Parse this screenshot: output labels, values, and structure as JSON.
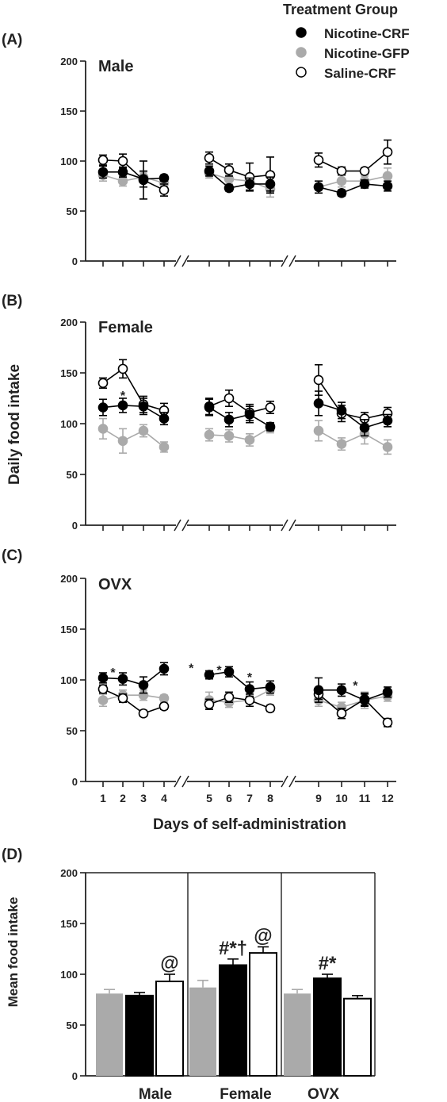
{
  "legend": {
    "title": "Treatment Group",
    "entries": [
      {
        "label": "Nicotine-CRF",
        "marker": "filled-black"
      },
      {
        "label": "Nicotine-GFP",
        "marker": "filled-gray"
      },
      {
        "label": "Saline-CRF",
        "marker": "open"
      }
    ]
  },
  "colors": {
    "nicotine_crf": "#000000",
    "nicotine_gfp": "#aaaaaa",
    "saline_crf": "#ffffff",
    "axis": "#222222"
  },
  "chart_data": [
    {
      "panel": "(A)",
      "type": "line",
      "title": "Male",
      "ylabel": "",
      "xlabel": "",
      "ylim": [
        0,
        200
      ],
      "yticks": [
        0,
        50,
        100,
        150,
        200
      ],
      "x": [
        1,
        2,
        3,
        4,
        5,
        6,
        7,
        8,
        9,
        10,
        11,
        12
      ],
      "show_xtick_labels": false,
      "series": [
        {
          "name": "Nicotine-CRF",
          "values": [
            89,
            89,
            82,
            83,
            90,
            73,
            77,
            77,
            74,
            68,
            77,
            75
          ],
          "errors": [
            6,
            5,
            8,
            3,
            5,
            3,
            6,
            7,
            6,
            3,
            4,
            5
          ]
        },
        {
          "name": "Nicotine-GFP",
          "values": [
            86,
            80,
            84,
            78,
            88,
            82,
            80,
            72,
            74,
            80,
            80,
            85
          ],
          "errors": [
            6,
            5,
            5,
            4,
            5,
            5,
            6,
            8,
            6,
            6,
            5,
            8
          ]
        },
        {
          "name": "Saline-CRF",
          "values": [
            101,
            100,
            81,
            71,
            103,
            91,
            84,
            86,
            101,
            90,
            90,
            109
          ],
          "errors": [
            5,
            7,
            19,
            6,
            6,
            6,
            14,
            18,
            7,
            4,
            3,
            12
          ]
        }
      ],
      "annotations": []
    },
    {
      "panel": "(B)",
      "type": "line",
      "title": "Female",
      "ylabel": "Daily food intake",
      "xlabel": "",
      "ylim": [
        0,
        200
      ],
      "yticks": [
        0,
        50,
        100,
        150,
        200
      ],
      "x": [
        1,
        2,
        3,
        4,
        5,
        6,
        7,
        8,
        9,
        10,
        11,
        12
      ],
      "show_xtick_labels": false,
      "series": [
        {
          "name": "Nicotine-CRF",
          "values": [
            116,
            118,
            117,
            105,
            116,
            104,
            109,
            97,
            120,
            113,
            96,
            103
          ],
          "errors": [
            8,
            7,
            8,
            6,
            8,
            7,
            8,
            4,
            12,
            8,
            8,
            6
          ]
        },
        {
          "name": "Nicotine-GFP",
          "values": [
            95,
            83,
            93,
            77,
            89,
            88,
            84,
            96,
            93,
            80,
            90,
            77
          ],
          "errors": [
            10,
            12,
            6,
            5,
            6,
            6,
            6,
            5,
            10,
            6,
            10,
            7
          ]
        },
        {
          "name": "Saline-CRF",
          "values": [
            140,
            154,
            119,
            113,
            117,
            125,
            111,
            116,
            143,
            110,
            105,
            110
          ],
          "errors": [
            5,
            9,
            8,
            7,
            8,
            8,
            8,
            6,
            15,
            8,
            6,
            6
          ]
        }
      ],
      "annotations": [
        {
          "text": "*",
          "x": 2,
          "y": 128
        }
      ]
    },
    {
      "panel": "(C)",
      "type": "line",
      "title": "OVX",
      "ylabel": "",
      "xlabel": "Days of self-administration",
      "ylim": [
        0,
        200
      ],
      "yticks": [
        0,
        50,
        100,
        150,
        200
      ],
      "x": [
        1,
        2,
        3,
        4,
        5,
        6,
        7,
        8,
        9,
        10,
        11,
        12
      ],
      "show_xtick_labels": true,
      "series": [
        {
          "name": "Nicotine-CRF",
          "values": [
            102,
            101,
            95,
            111,
            105,
            108,
            91,
            93,
            90,
            90,
            80,
            88
          ],
          "errors": [
            5,
            6,
            8,
            6,
            4,
            5,
            7,
            6,
            12,
            6,
            6,
            5
          ]
        },
        {
          "name": "Nicotine-GFP",
          "values": [
            80,
            85,
            85,
            82,
            80,
            78,
            80,
            90,
            80,
            73,
            80,
            84
          ],
          "errors": [
            6,
            5,
            5,
            3,
            8,
            5,
            6,
            5,
            6,
            5,
            8,
            5
          ]
        },
        {
          "name": "Saline-CRF",
          "values": [
            91,
            82,
            67,
            74,
            76,
            83,
            80,
            72,
            86,
            67,
            81,
            58
          ],
          "errors": [
            4,
            4,
            3,
            3,
            5,
            5,
            6,
            3,
            5,
            5,
            6,
            4
          ]
        }
      ],
      "annotations": [
        {
          "text": "*",
          "x": 1.5,
          "y": 108
        },
        {
          "text": "*",
          "x": 4.6,
          "y": 112
        },
        {
          "text": "*",
          "x": 5.5,
          "y": 110
        },
        {
          "text": "*",
          "x": 7,
          "y": 103
        },
        {
          "text": "*",
          "x": 10.6,
          "y": 95
        }
      ],
      "xtick_labels": [
        "1",
        "2",
        "3",
        "4",
        "5",
        "6",
        "7",
        "8",
        "9",
        "10",
        "11",
        "12"
      ]
    },
    {
      "panel": "(D)",
      "type": "bar",
      "title": "",
      "ylabel": "Mean food intake",
      "ylim": [
        0,
        200
      ],
      "yticks": [
        0,
        50,
        100,
        150,
        200
      ],
      "categories": [
        "Male",
        "Female",
        "OVX"
      ],
      "series": [
        {
          "name": "Nicotine-GFP",
          "values": [
            81,
            87,
            81
          ],
          "errors": [
            4,
            7,
            4
          ]
        },
        {
          "name": "Nicotine-CRF",
          "values": [
            79,
            109,
            96
          ],
          "errors": [
            3,
            6,
            4
          ]
        },
        {
          "name": "Saline-CRF",
          "values": [
            93,
            121,
            76
          ],
          "errors": [
            7,
            6,
            3
          ]
        }
      ],
      "annotations": [
        {
          "text": "@",
          "category": 0,
          "series": 2
        },
        {
          "text": "#*†",
          "category": 1,
          "series": 1
        },
        {
          "text": "@",
          "category": 1,
          "series": 2
        },
        {
          "text": "#*",
          "category": 2,
          "series": 1
        }
      ]
    }
  ]
}
